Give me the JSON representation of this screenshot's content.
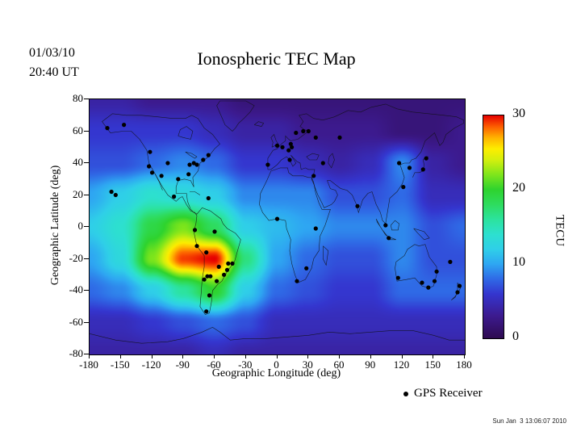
{
  "header": {
    "date": "01/03/10",
    "time": "20:40 UT",
    "title": "Ionospheric TEC Map",
    "timestamp": "Sun Jan  3 13:06:07 2010"
  },
  "axes": {
    "x_label": "Geographic Longitude (deg)",
    "y_label": "Geographic Latitude (deg)",
    "x_ticks": [
      -180,
      -150,
      -120,
      -90,
      -60,
      -30,
      0,
      30,
      60,
      90,
      120,
      150,
      180
    ],
    "y_ticks": [
      80,
      60,
      40,
      20,
      0,
      -20,
      -40,
      -60,
      -80
    ]
  },
  "colorbar": {
    "unit_label": "TECU",
    "ticks": [
      30,
      20,
      10,
      0
    ],
    "range": [
      0,
      30
    ],
    "stops": [
      {
        "v": 0,
        "c": "#2e0a50"
      },
      {
        "v": 3,
        "c": "#3c1a8e"
      },
      {
        "v": 6,
        "c": "#3436cf"
      },
      {
        "v": 8,
        "c": "#2f6ae6"
      },
      {
        "v": 10,
        "c": "#2ea6f2"
      },
      {
        "v": 12,
        "c": "#2fcfe8"
      },
      {
        "v": 14,
        "c": "#2de0cf"
      },
      {
        "v": 16,
        "c": "#2ce39e"
      },
      {
        "v": 18,
        "c": "#2edc5f"
      },
      {
        "v": 20,
        "c": "#2ed32e"
      },
      {
        "v": 22,
        "c": "#7de51c"
      },
      {
        "v": 24,
        "c": "#d3ef0e"
      },
      {
        "v": 25.5,
        "c": "#fded00"
      },
      {
        "v": 27,
        "c": "#ffb300"
      },
      {
        "v": 28.5,
        "c": "#fc5d00"
      },
      {
        "v": 30,
        "c": "#e60000"
      }
    ]
  },
  "legend": {
    "gps_label": "GPS Receiver"
  },
  "chart_data": {
    "type": "heatmap",
    "title": "Ionospheric TEC Map",
    "xlabel": "Geographic Longitude (deg)",
    "ylabel": "Geographic Latitude (deg)",
    "xlim": [
      -180,
      180
    ],
    "ylim": [
      -80,
      80
    ],
    "value_units": "TECU",
    "value_range": [
      0,
      30
    ],
    "grid_lons": [
      -180,
      -150,
      -120,
      -90,
      -60,
      -30,
      0,
      30,
      60,
      90,
      120,
      150,
      180
    ],
    "grid_lats": [
      80,
      60,
      40,
      20,
      0,
      -20,
      -40,
      -60,
      -80
    ],
    "tec_values": [
      [
        4,
        4,
        3,
        3,
        3,
        2,
        2,
        2,
        2,
        2,
        2,
        2,
        2
      ],
      [
        6,
        6,
        6,
        6,
        5,
        4,
        4,
        3,
        3,
        3,
        2,
        2,
        3
      ],
      [
        7,
        7,
        8,
        9,
        8,
        6,
        6,
        5,
        4,
        5,
        9,
        4,
        3
      ],
      [
        10,
        12,
        14,
        13,
        12,
        9,
        9,
        9,
        7,
        7,
        8,
        5,
        5
      ],
      [
        12,
        14,
        19,
        22,
        18,
        12,
        11,
        10,
        9,
        9,
        9,
        7,
        8
      ],
      [
        10,
        13,
        22,
        29,
        30,
        17,
        10,
        8,
        7,
        7,
        9,
        7,
        7
      ],
      [
        8,
        9,
        12,
        16,
        20,
        12,
        8,
        7,
        6,
        6,
        8,
        8,
        8
      ],
      [
        5,
        5,
        6,
        7,
        8,
        7,
        5,
        5,
        5,
        5,
        5,
        5,
        5
      ],
      [
        4,
        4,
        4,
        4,
        5,
        4,
        4,
        4,
        4,
        4,
        4,
        4,
        4
      ]
    ],
    "gps_receivers": [
      [
        -163,
        62
      ],
      [
        -147,
        64
      ],
      [
        -159,
        22
      ],
      [
        -155,
        20
      ],
      [
        -122,
        47
      ],
      [
        -123,
        38
      ],
      [
        -120,
        34
      ],
      [
        -111,
        32
      ],
      [
        -105,
        40
      ],
      [
        -95,
        30
      ],
      [
        -85,
        33
      ],
      [
        -84,
        39
      ],
      [
        -80,
        40
      ],
      [
        -77,
        39
      ],
      [
        -71,
        42
      ],
      [
        -66,
        45
      ],
      [
        -99,
        19
      ],
      [
        -66,
        18
      ],
      [
        -79,
        -2
      ],
      [
        -77,
        -12
      ],
      [
        -68,
        -16
      ],
      [
        -70,
        -33
      ],
      [
        -67,
        -31
      ],
      [
        -64,
        -31
      ],
      [
        -58,
        -34
      ],
      [
        -56,
        -25
      ],
      [
        -51,
        -30
      ],
      [
        -48,
        -27
      ],
      [
        -47,
        -23
      ],
      [
        -43,
        -23
      ],
      [
        -60,
        -3
      ],
      [
        -65,
        -43
      ],
      [
        -68,
        -53
      ],
      [
        -9,
        39
      ],
      [
        0,
        51
      ],
      [
        5,
        50
      ],
      [
        11,
        48
      ],
      [
        14,
        50
      ],
      [
        13,
        52
      ],
      [
        12,
        42
      ],
      [
        18,
        59
      ],
      [
        25,
        60
      ],
      [
        30,
        60
      ],
      [
        37,
        56
      ],
      [
        35,
        32
      ],
      [
        44,
        40
      ],
      [
        28,
        -26
      ],
      [
        19,
        -34
      ],
      [
        37,
        -1
      ],
      [
        0,
        5
      ],
      [
        60,
        56
      ],
      [
        77,
        13
      ],
      [
        117,
        40
      ],
      [
        127,
        37
      ],
      [
        140,
        36
      ],
      [
        143,
        43
      ],
      [
        121,
        25
      ],
      [
        104,
        1
      ],
      [
        107,
        -7
      ],
      [
        116,
        -32
      ],
      [
        139,
        -35
      ],
      [
        145,
        -38
      ],
      [
        151,
        -34
      ],
      [
        153,
        -28
      ],
      [
        173,
        -41
      ],
      [
        175,
        -37
      ],
      [
        166,
        -22
      ]
    ]
  }
}
